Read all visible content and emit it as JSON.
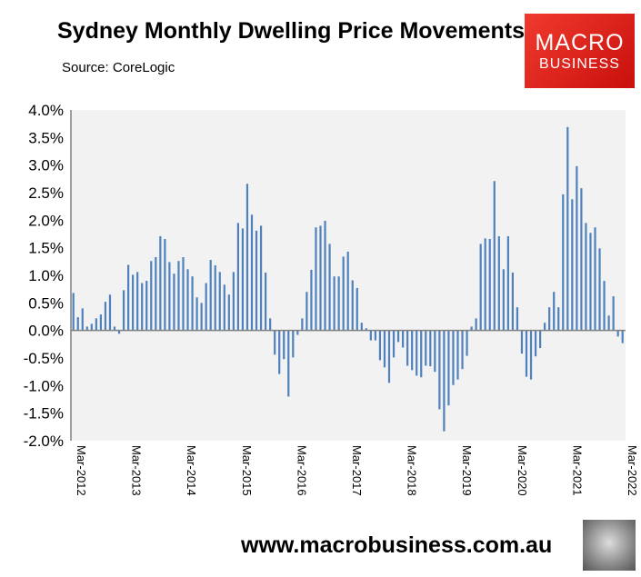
{
  "header": {
    "title": "Sydney Monthly Dwelling Price Movements",
    "source": "Source: CoreLogic"
  },
  "logo": {
    "line1": "MACRO",
    "line2": "BUSINESS"
  },
  "footer": {
    "url": "www.macrobusiness.com.au"
  },
  "colors": {
    "bar": "#4f81bd",
    "plot_bg": "#f2f2f2",
    "logo": "#e3231b"
  },
  "chart_data": {
    "type": "bar",
    "title": "Sydney Monthly Dwelling Price Movements",
    "xlabel": "",
    "ylabel": "",
    "ylim": [
      -2.0,
      4.0
    ],
    "y_ticks": [
      "4.0%",
      "3.5%",
      "3.0%",
      "2.5%",
      "2.0%",
      "1.5%",
      "1.0%",
      "0.5%",
      "0.0%",
      "-0.5%",
      "-1.0%",
      "-1.5%",
      "-2.0%"
    ],
    "x_ticks": [
      "Mar-2012",
      "Mar-2013",
      "Mar-2014",
      "Mar-2015",
      "Mar-2016",
      "Mar-2017",
      "Mar-2018",
      "Mar-2019",
      "Mar-2020",
      "Mar-2021",
      "Mar-2022"
    ],
    "grid": false,
    "legend": "none",
    "unit": "%",
    "values": [
      0.68,
      0.24,
      0.4,
      0.07,
      0.12,
      0.22,
      0.29,
      0.52,
      0.65,
      0.07,
      -0.06,
      0.73,
      1.19,
      1.01,
      1.06,
      0.86,
      0.9,
      1.26,
      1.33,
      1.71,
      1.66,
      1.24,
      1.03,
      1.26,
      1.33,
      1.11,
      0.98,
      0.6,
      0.5,
      0.86,
      1.28,
      1.18,
      1.06,
      0.83,
      0.65,
      1.06,
      1.95,
      1.85,
      2.66,
      2.1,
      1.81,
      1.9,
      1.05,
      0.22,
      -0.44,
      -0.79,
      -0.52,
      -1.2,
      -0.49,
      -0.08,
      0.22,
      0.7,
      1.1,
      1.87,
      1.9,
      1.99,
      1.57,
      0.98,
      0.98,
      1.34,
      1.43,
      0.91,
      0.77,
      0.14,
      0.04,
      -0.18,
      -0.18,
      -0.54,
      -0.67,
      -0.95,
      -0.49,
      -0.21,
      -0.31,
      -0.64,
      -0.72,
      -0.82,
      -0.85,
      -0.64,
      -0.65,
      -0.75,
      -1.43,
      -1.83,
      -1.36,
      -0.99,
      -0.89,
      -0.7,
      -0.46,
      0.07,
      0.22,
      1.57,
      1.67,
      1.66,
      2.71,
      1.71,
      1.11,
      1.71,
      1.05,
      0.42,
      -0.42,
      -0.84,
      -0.89,
      -0.47,
      -0.32,
      0.14,
      0.42,
      0.7,
      0.42,
      2.47,
      3.69,
      2.38,
      2.98,
      2.58,
      1.95,
      1.77,
      1.87,
      1.49,
      0.9,
      0.27,
      0.62,
      -0.11,
      -0.23
    ]
  }
}
